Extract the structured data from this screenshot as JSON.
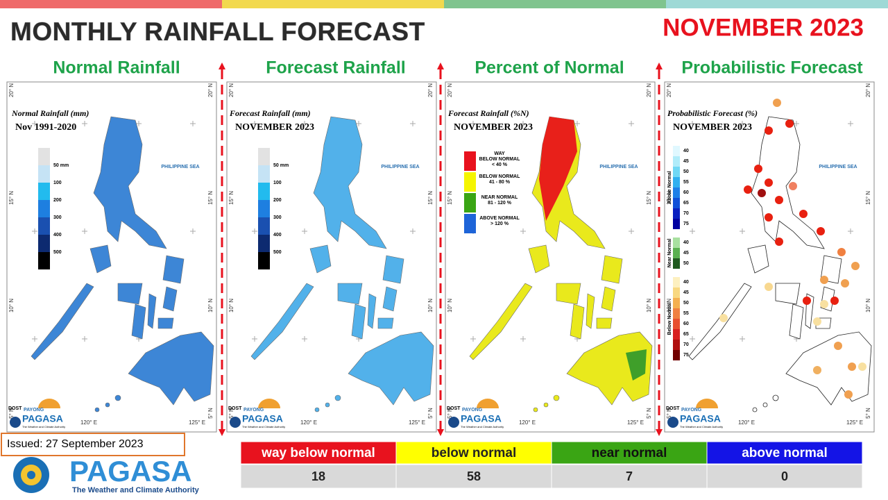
{
  "header": {
    "title": "MONTHLY RAINFALL FORECAST",
    "month": "NOVEMBER 2023"
  },
  "panels": [
    {
      "heading": "Normal Rainfall",
      "map_title": "Normal Rainfall (mm)",
      "map_subtitle": "Nov 1991-2020",
      "legend": [
        "50 mm",
        "100",
        "200",
        "300",
        "400",
        "500"
      ]
    },
    {
      "heading": "Forecast Rainfall",
      "map_title": "Forecast Rainfall (mm)",
      "map_subtitle": "NOVEMBER 2023",
      "legend": [
        "50 mm",
        "100",
        "200",
        "300",
        "400",
        "500"
      ]
    },
    {
      "heading": "Percent of Normal",
      "map_title": "Forecast Rainfall (%N)",
      "map_subtitle": "NOVEMBER 2023",
      "legend_items": [
        [
          "WAY",
          "BELOW NORMAL",
          "< 40 %"
        ],
        [
          "BELOW NORMAL",
          "41 - 80 %"
        ],
        [
          "NEAR NORMAL",
          "81 - 120 %"
        ],
        [
          "ABOVE NORMAL",
          "> 120 %"
        ]
      ]
    },
    {
      "heading": "Probabilistic Forecast",
      "map_title": "Probabilistic Forecast (%)",
      "map_subtitle": "NOVEMBER 2023",
      "legend_groups": [
        {
          "name": "Above Normal",
          "levels": [
            40,
            45,
            50,
            55,
            60,
            65,
            70,
            75
          ]
        },
        {
          "name": "Near Normal",
          "levels": [
            40,
            45,
            50
          ]
        },
        {
          "name": "Below Normal",
          "levels": [
            40,
            45,
            50,
            55,
            60,
            65,
            70,
            75
          ]
        }
      ]
    }
  ],
  "map": {
    "lat_labels": [
      "20° N",
      "15° N",
      "10° N",
      "5° N"
    ],
    "lon_labels": [
      "120° E",
      "125° E"
    ],
    "sea_label": "PHILIPPINE SEA",
    "logo": {
      "agency": "DOST",
      "payong": "PAYONG",
      "name": "PAGASA",
      "tagline": "The Weather and Climate Authority"
    }
  },
  "table": {
    "headers": [
      "way below normal",
      "below normal",
      "near normal",
      "above normal"
    ],
    "counts": [
      18,
      58,
      7,
      0
    ]
  },
  "footer": {
    "issued": "Issued: 27 September 2023",
    "logo_name": "PAGASA",
    "logo_tagline": "The Weather and Climate Authority"
  }
}
